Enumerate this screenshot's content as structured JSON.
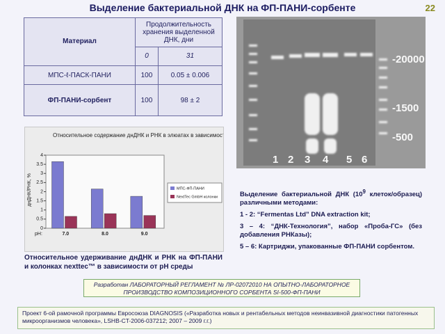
{
  "title": "Выделение бактериальной ДНК на ФП-ПАНИ-сорбенте",
  "page_number": "22",
  "table": {
    "header": [
      "Материал",
      "Продолжительность хранения выделенной ДНК, дни"
    ],
    "subheader": [
      "0",
      "31"
    ],
    "rows": [
      [
        "МПС-ℓ-ПАСК-ПАНИ",
        "100",
        "0.05 ± 0.006"
      ],
      [
        "ФП-ПАНИ-сорбент",
        "100",
        "98 ± 2"
      ]
    ]
  },
  "chart_data": {
    "type": "bar",
    "title": "Относительное содержание днДНК и РНК в элюатах в зависимости от pH",
    "y_label": "днДНК/РНК, %",
    "x_label": "pH:",
    "categories": [
      "7.0",
      "8.0",
      "9.0"
    ],
    "series": [
      {
        "name": "МПС-ФП-ПАНИ",
        "color": "#7b7bd0",
        "values": [
          3.65,
          2.15,
          1.75
        ]
      },
      {
        "name": "NextTec GmbH колонки",
        "color": "#9a3458",
        "values": [
          0.65,
          0.8,
          0.7
        ]
      }
    ],
    "ylim": [
      0,
      4
    ],
    "yticks": [
      0,
      0.5,
      1,
      1.5,
      2,
      2.5,
      3,
      3.5,
      4
    ],
    "legend": "right"
  },
  "chart_caption": "Относительное удерживание днДНК и РНК на ФП-ПАНИ и колонках nexttec™ в зависимости от рН среды",
  "gel": {
    "markers": [
      "-20000",
      "-1500",
      "-500"
    ],
    "lanes": [
      "1",
      "2",
      "3",
      "4",
      "5",
      "6"
    ]
  },
  "gel_description": {
    "intro_start": "Выделение бактериальной ДНК (10",
    "intro_sup": "9",
    "intro_end": " клеток/образец) различными методами:",
    "items": [
      "1 - 2:  “Fermentas Ltd” DNA extraction kit;",
      "3 – 4:  “ДНК-Технология”, набор «Проба-ГС» (без добавления РНКазы);",
      "5 – 6:   Картриджи, упакованные ФП-ПАНИ сорбентом."
    ]
  },
  "regulation": "Разработан ЛАБОРАТОРНЫЙ РЕГЛАМЕНТ № ЛР-02072010 НА ОПЫТНО-ЛАБОРАТОРНОЕ ПРОИЗВОДСТВО КОМПОЗИЦИОННОГО СОРБЕНТА SI-500-ФП-ПАНИ",
  "footer": "Проект 6-ой рамочной программы Евросоюза DIAGNOSIS («Разработка новых и рентабельных методов неинвазивной диагностики патогенных микроорганизмов человека», LSHB-CT-2006-037212; 2007 – 2009 г.г.)"
}
